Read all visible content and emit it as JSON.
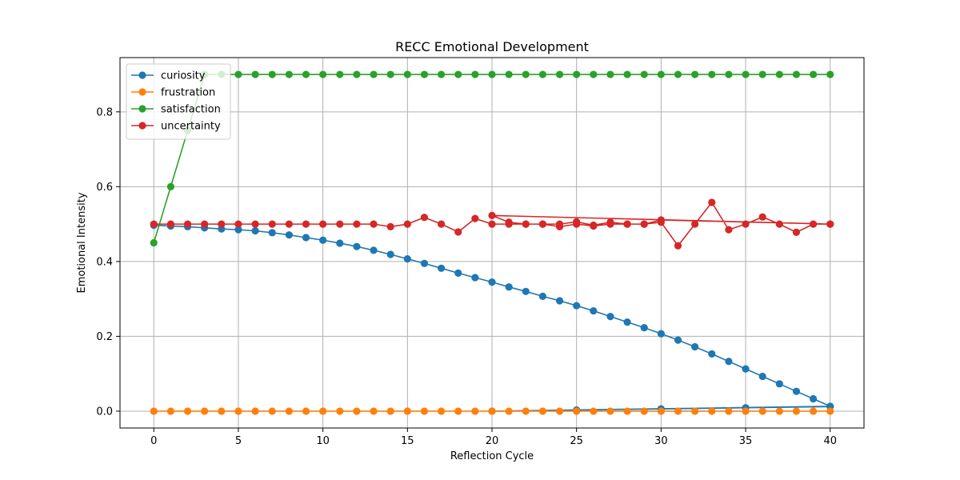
{
  "chart_data": {
    "type": "line",
    "title": "RECC Emotional Development",
    "xlabel": "Reflection Cycle",
    "ylabel": "Emotional Intensity",
    "xlim": [
      -2,
      42
    ],
    "ylim": [
      -0.045,
      0.945
    ],
    "xticks": [
      0,
      5,
      10,
      15,
      20,
      25,
      30,
      35,
      40
    ],
    "yticks": [
      0.0,
      0.2,
      0.4,
      0.6,
      0.8
    ],
    "xtick_labels": [
      "0",
      "5",
      "10",
      "15",
      "20",
      "25",
      "30",
      "35",
      "40"
    ],
    "ytick_labels": [
      "0.0",
      "0.2",
      "0.4",
      "0.6",
      "0.8"
    ],
    "grid": true,
    "legend_position": "top-left",
    "series": [
      {
        "name": "curiosity",
        "color": "#1f77b4",
        "x": [
          0,
          1,
          2,
          3,
          4,
          5,
          6,
          7,
          8,
          9,
          10,
          11,
          12,
          13,
          14,
          15,
          16,
          17,
          18,
          19,
          20,
          21,
          22,
          23,
          24,
          25,
          26,
          27,
          28,
          29,
          30,
          31,
          32,
          33,
          34,
          35,
          36,
          37,
          38,
          39,
          40,
          20,
          25,
          30,
          35,
          40
        ],
        "y": [
          0.497,
          0.495,
          0.493,
          0.49,
          0.487,
          0.485,
          0.482,
          0.477,
          0.471,
          0.464,
          0.457,
          0.449,
          0.44,
          0.43,
          0.419,
          0.407,
          0.395,
          0.382,
          0.369,
          0.357,
          0.345,
          0.332,
          0.32,
          0.307,
          0.295,
          0.282,
          0.268,
          0.253,
          0.238,
          0.223,
          0.207,
          0.19,
          0.172,
          0.153,
          0.133,
          0.113,
          0.093,
          0.073,
          0.053,
          0.033,
          0.013,
          0.0,
          0.003,
          0.006,
          0.009,
          0.012
        ]
      },
      {
        "name": "frustration",
        "color": "#ff7f0e",
        "x": [
          0,
          1,
          2,
          3,
          4,
          5,
          6,
          7,
          8,
          9,
          10,
          11,
          12,
          13,
          14,
          15,
          16,
          17,
          18,
          19,
          20,
          21,
          22,
          23,
          24,
          25,
          26,
          27,
          28,
          29,
          30,
          31,
          32,
          33,
          34,
          35,
          36,
          37,
          38,
          39,
          40
        ],
        "y": [
          0,
          0,
          0,
          0,
          0,
          0,
          0,
          0,
          0,
          0,
          0,
          0,
          0,
          0,
          0,
          0,
          0,
          0,
          0,
          0,
          0,
          0,
          0,
          0,
          0,
          0,
          0,
          0,
          0,
          0,
          0,
          0,
          0,
          0,
          0,
          0,
          0,
          0,
          0,
          0,
          0
        ]
      },
      {
        "name": "satisfaction",
        "color": "#2ca02c",
        "x": [
          0,
          1,
          2,
          3,
          4,
          5,
          6,
          7,
          8,
          9,
          10,
          11,
          12,
          13,
          14,
          15,
          16,
          17,
          18,
          19,
          20,
          21,
          22,
          23,
          24,
          25,
          26,
          27,
          28,
          29,
          30,
          31,
          32,
          33,
          34,
          35,
          36,
          37,
          38,
          39,
          40
        ],
        "y": [
          0.45,
          0.6,
          0.75,
          0.9,
          0.9,
          0.9,
          0.9,
          0.9,
          0.9,
          0.9,
          0.9,
          0.9,
          0.9,
          0.9,
          0.9,
          0.9,
          0.9,
          0.9,
          0.9,
          0.9,
          0.9,
          0.9,
          0.9,
          0.9,
          0.9,
          0.9,
          0.9,
          0.9,
          0.9,
          0.9,
          0.9,
          0.9,
          0.9,
          0.9,
          0.9,
          0.9,
          0.9,
          0.9,
          0.9,
          0.9,
          0.9
        ]
      },
      {
        "name": "uncertainty",
        "color": "#d62728",
        "x": [
          0,
          1,
          2,
          3,
          4,
          5,
          6,
          7,
          8,
          9,
          10,
          11,
          12,
          13,
          14,
          15,
          16,
          17,
          18,
          19,
          20,
          21,
          22,
          23,
          24,
          25,
          26,
          27,
          28,
          29,
          30,
          31,
          32,
          33,
          34,
          35,
          36,
          37,
          38,
          39,
          40,
          20,
          21,
          22,
          23,
          24,
          25,
          26,
          27,
          28,
          29,
          30,
          40
        ],
        "y": [
          0.5,
          0.5,
          0.5,
          0.5,
          0.5,
          0.5,
          0.5,
          0.5,
          0.5,
          0.5,
          0.5,
          0.5,
          0.5,
          0.5,
          0.493,
          0.5,
          0.518,
          0.5,
          0.479,
          0.515,
          0.5,
          0.5,
          0.5,
          0.5,
          0.493,
          0.5,
          0.495,
          0.5,
          0.5,
          0.5,
          0.505,
          0.442,
          0.5,
          0.558,
          0.485,
          0.5,
          0.519,
          0.5,
          0.478,
          0.5,
          0.5,
          0.523,
          0.505,
          0.5,
          0.5,
          0.5,
          0.506,
          0.497,
          0.505,
          0.5,
          0.5,
          0.511,
          0.5
        ]
      }
    ]
  }
}
